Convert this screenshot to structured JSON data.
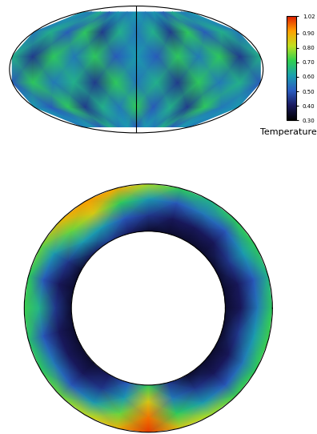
{
  "chart_data": [
    {
      "type": "heatmap_map",
      "x": [
        -180,
        -150,
        -120,
        -90,
        -60,
        -30,
        0,
        30,
        60,
        90,
        120,
        150,
        180
      ],
      "y": [
        -75,
        -45,
        -15,
        15,
        45,
        75
      ],
      "values": [
        [
          0.55,
          0.6,
          0.5,
          0.65,
          0.55,
          0.6,
          0.5,
          0.6,
          0.55,
          0.65,
          0.5,
          0.6,
          0.55
        ],
        [
          0.6,
          0.5,
          0.7,
          0.45,
          0.65,
          0.55,
          0.7,
          0.5,
          0.65,
          0.45,
          0.7,
          0.55,
          0.6
        ],
        [
          0.5,
          0.7,
          0.55,
          0.65,
          0.45,
          0.7,
          0.55,
          0.65,
          0.45,
          0.7,
          0.55,
          0.65,
          0.5
        ],
        [
          0.65,
          0.45,
          0.7,
          0.55,
          0.7,
          0.5,
          0.6,
          0.5,
          0.7,
          0.55,
          0.7,
          0.45,
          0.65
        ],
        [
          0.55,
          0.65,
          0.5,
          0.7,
          0.45,
          0.65,
          0.55,
          0.65,
          0.45,
          0.7,
          0.5,
          0.65,
          0.55
        ],
        [
          0.6,
          0.55,
          0.65,
          0.5,
          0.6,
          0.55,
          0.6,
          0.55,
          0.6,
          0.5,
          0.65,
          0.55,
          0.6
        ]
      ],
      "colorbar": {
        "label": "Temperature",
        "range": [
          0.3,
          1.02
        ],
        "ticks": [
          {
            "value": 0.3,
            "label": "0.30"
          },
          {
            "value": 0.4,
            "label": "0.40"
          },
          {
            "value": 0.5,
            "label": "0.50"
          },
          {
            "value": 0.6,
            "label": "0.60"
          },
          {
            "value": 0.7,
            "label": "0.70"
          },
          {
            "value": 0.8,
            "label": "0.80"
          },
          {
            "value": 0.9,
            "label": "0.90"
          },
          {
            "value": 1.02,
            "label": "1.02"
          }
        ]
      }
    },
    {
      "type": "heatmap_annulus",
      "x": [
        0,
        15,
        30,
        45,
        60,
        75,
        90,
        105,
        120,
        135,
        150,
        165,
        180,
        195,
        210,
        225,
        240,
        255,
        270,
        285,
        300,
        315,
        330,
        345
      ],
      "y": [
        0.62,
        0.75,
        0.88,
        1.0
      ],
      "values": [
        [
          0.35,
          0.35,
          0.35,
          0.35,
          0.35,
          0.35,
          0.35,
          0.4,
          0.45,
          0.4,
          0.35,
          0.35,
          0.35,
          0.35,
          0.35,
          0.35,
          0.4,
          0.5,
          0.7,
          0.45,
          0.35,
          0.35,
          0.35,
          0.35
        ],
        [
          0.4,
          0.4,
          0.45,
          0.4,
          0.4,
          0.4,
          0.45,
          0.5,
          0.6,
          0.6,
          0.45,
          0.4,
          0.45,
          0.4,
          0.4,
          0.4,
          0.45,
          0.6,
          0.85,
          0.55,
          0.45,
          0.4,
          0.4,
          0.45
        ],
        [
          0.55,
          0.5,
          0.6,
          0.5,
          0.55,
          0.5,
          0.6,
          0.7,
          0.85,
          0.75,
          0.6,
          0.5,
          0.65,
          0.5,
          0.55,
          0.5,
          0.6,
          0.75,
          0.95,
          0.7,
          0.6,
          0.5,
          0.55,
          0.6
        ],
        [
          0.7,
          0.65,
          0.7,
          0.7,
          0.65,
          0.7,
          0.8,
          0.9,
          0.92,
          0.88,
          0.75,
          0.7,
          0.72,
          0.68,
          0.7,
          0.75,
          0.82,
          0.88,
          1.0,
          0.85,
          0.8,
          0.72,
          0.7,
          0.72
        ]
      ]
    }
  ]
}
